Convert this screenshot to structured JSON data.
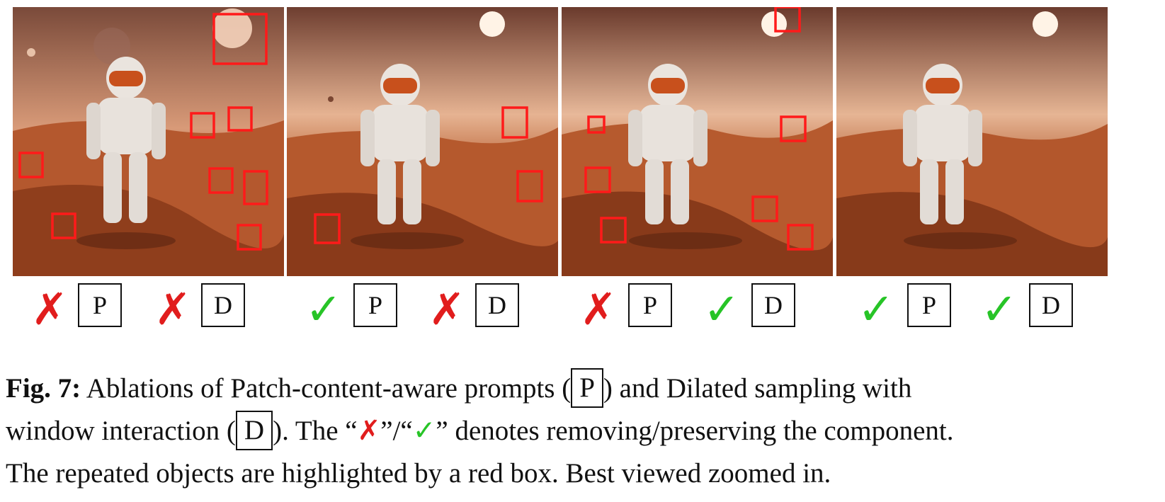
{
  "panels": [
    {
      "id": "p1",
      "label_p": "P",
      "label_d": "D",
      "mark_p": "cross",
      "mark_d": "cross"
    },
    {
      "id": "p2",
      "label_p": "P",
      "label_d": "D",
      "mark_p": "check",
      "mark_d": "cross"
    },
    {
      "id": "p3",
      "label_p": "P",
      "label_d": "D",
      "mark_p": "cross",
      "mark_d": "check"
    },
    {
      "id": "p4",
      "label_p": "P",
      "label_d": "D",
      "mark_p": "check",
      "mark_d": "check"
    }
  ],
  "symbols": {
    "cross": "✗",
    "check": "✓"
  },
  "colors": {
    "cross": "#e11d1d",
    "check": "#27c427",
    "highlight_box": "#ff1a1a"
  },
  "caption": {
    "fig_label": "Fig. 7:",
    "part1": " Ablations of Patch-content-aware prompts (",
    "box_p": "P",
    "part2": ") and Dilated sampling with",
    "part3": "window interaction (",
    "box_d": "D",
    "part4": "). The “",
    "cross": "✗",
    "part5": "”/“",
    "check": "✓",
    "part6": "” denotes removing/preserving the component.",
    "line3": "The repeated objects are highlighted by a red box. Best viewed zoomed in."
  }
}
